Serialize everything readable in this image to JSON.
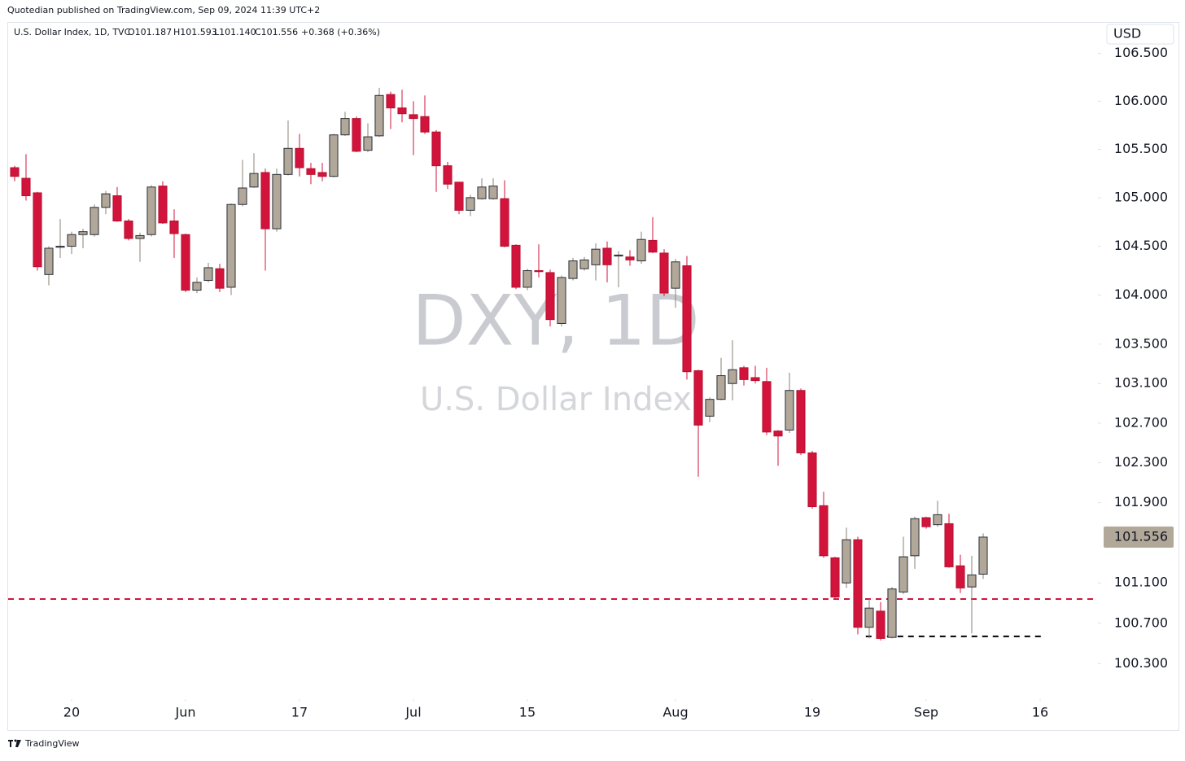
{
  "page": {
    "byline": "Quotedian published on TradingView.com, Sep 09, 2024 11:39 UTC+2",
    "brand": "TradingView"
  },
  "chart_data": {
    "type": "candlestick",
    "header": {
      "symbol": "U.S. Dollar Index, 1D, TVC",
      "open": "O101.187",
      "high": "H101.593",
      "low": "L101.140",
      "close": "C101.556",
      "change": "+0.368 (+0.36%)"
    },
    "watermark": {
      "title": "DXY, 1D",
      "subtitle": "U.S. Dollar Index"
    },
    "currency": "USD",
    "log": true,
    "grid": false,
    "up_color": "#b2a899",
    "up_border": "#2a2e39",
    "up_wick": "#8a8276",
    "down_color": "#d2143c",
    "down_border": "#b5102f",
    "down_wick": "#d2143c",
    "last_price_color": "#b2a899",
    "open": [
      105.31,
      105.2,
      105.05,
      104.21,
      104.49,
      104.5,
      104.62,
      104.62,
      104.9,
      105.02,
      104.76,
      104.58,
      104.62,
      105.12,
      104.76,
      104.62,
      104.05,
      104.15,
      104.27,
      104.08,
      104.93,
      105.11,
      105.26,
      104.68,
      105.24,
      105.51,
      105.3,
      105.26,
      105.22,
      105.65,
      105.82,
      105.49,
      105.64,
      106.07,
      105.93,
      105.86,
      105.84,
      105.68,
      105.33,
      105.16,
      104.87,
      104.99,
      104.99,
      104.99,
      104.51,
      104.08,
      104.25,
      104.23,
      103.71,
      104.17,
      104.27,
      104.31,
      104.48,
      104.4,
      104.39,
      104.35,
      104.56,
      104.43,
      104.07,
      104.3,
      103.23,
      102.77,
      102.94,
      103.1,
      103.26,
      103.16,
      103.12,
      102.62,
      102.63,
      103.03,
      102.4,
      101.87,
      101.35,
      101.1,
      101.53,
      100.66,
      100.82,
      100.56,
      101.01,
      101.37,
      101.75,
      101.68,
      101.69,
      101.27,
      101.06,
      101.187
    ],
    "high": [
      105.33,
      105.45,
      105.06,
      104.5,
      104.78,
      104.65,
      104.68,
      104.93,
      105.07,
      105.11,
      104.78,
      104.64,
      105.13,
      105.17,
      104.88,
      104.63,
      104.18,
      104.33,
      104.32,
      104.94,
      105.39,
      105.46,
      105.3,
      105.3,
      105.8,
      105.66,
      105.36,
      105.36,
      105.66,
      105.89,
      105.84,
      105.77,
      106.14,
      106.1,
      106.12,
      106.0,
      106.06,
      105.7,
      105.37,
      105.16,
      105.03,
      105.2,
      105.2,
      105.18,
      104.52,
      104.27,
      104.52,
      104.26,
      104.2,
      104.38,
      104.39,
      104.53,
      104.55,
      104.45,
      104.46,
      104.65,
      104.8,
      104.47,
      104.37,
      104.4,
      103.24,
      102.96,
      103.36,
      103.54,
      103.28,
      103.28,
      103.26,
      102.63,
      103.21,
      103.05,
      102.42,
      102.01,
      101.36,
      101.65,
      101.56,
      100.94,
      100.91,
      101.06,
      101.56,
      101.76,
      101.76,
      101.92,
      101.79,
      101.38,
      101.37,
      101.593
    ],
    "low": [
      105.17,
      104.97,
      104.25,
      104.1,
      104.38,
      104.42,
      104.48,
      104.6,
      104.83,
      104.75,
      104.56,
      104.34,
      104.6,
      104.73,
      104.38,
      104.03,
      104.02,
      104.13,
      104.03,
      104.0,
      104.91,
      105.1,
      104.25,
      104.65,
      105.23,
      105.22,
      105.14,
      105.17,
      105.21,
      105.64,
      105.47,
      105.47,
      105.63,
      105.71,
      105.78,
      105.44,
      105.66,
      105.06,
      105.09,
      104.83,
      104.81,
      104.98,
      104.98,
      104.49,
      104.06,
      104.05,
      104.18,
      103.68,
      103.68,
      104.15,
      104.25,
      104.15,
      104.13,
      104.08,
      104.3,
      104.32,
      104.43,
      103.99,
      103.87,
      103.14,
      102.16,
      102.71,
      102.93,
      102.93,
      103.08,
      103.1,
      102.58,
      102.27,
      102.6,
      102.38,
      101.84,
      101.35,
      100.95,
      101.05,
      100.59,
      100.55,
      100.53,
      100.55,
      100.99,
      101.24,
      101.64,
      101.66,
      101.25,
      101.0,
      100.6,
      101.14
    ],
    "close": [
      105.22,
      105.02,
      104.29,
      104.48,
      104.5,
      104.62,
      104.65,
      104.9,
      105.04,
      104.76,
      104.58,
      104.61,
      105.11,
      104.74,
      104.63,
      104.05,
      104.13,
      104.28,
      104.07,
      104.93,
      105.1,
      105.25,
      104.68,
      105.24,
      105.51,
      105.31,
      105.24,
      105.22,
      105.65,
      105.82,
      105.48,
      105.63,
      106.06,
      105.93,
      105.87,
      105.82,
      105.68,
      105.33,
      105.14,
      104.87,
      105.0,
      105.11,
      105.12,
      104.5,
      104.08,
      104.25,
      104.24,
      103.75,
      104.18,
      104.35,
      104.36,
      104.47,
      104.31,
      104.41,
      104.36,
      104.57,
      104.44,
      104.02,
      104.34,
      103.22,
      102.68,
      102.94,
      103.18,
      103.24,
      103.14,
      103.13,
      102.61,
      102.57,
      103.03,
      102.4,
      101.86,
      101.37,
      100.96,
      101.53,
      100.66,
      100.85,
      100.55,
      101.04,
      101.36,
      101.74,
      101.66,
      101.78,
      101.26,
      101.05,
      101.18,
      101.556
    ],
    "xlim": [
      -0.57,
      95
    ],
    "xticks": [
      {
        "value": 5,
        "label": "20"
      },
      {
        "value": 15,
        "label": "Jun"
      },
      {
        "value": 25,
        "label": "17"
      },
      {
        "value": 35,
        "label": "Jul"
      },
      {
        "value": 45,
        "label": "15"
      },
      {
        "value": 58,
        "label": "Aug"
      },
      {
        "value": 70,
        "label": "19"
      },
      {
        "value": 80,
        "label": "Sep"
      },
      {
        "value": 90,
        "label": "16"
      }
    ],
    "ylim": [
      99.96,
      106.82
    ],
    "yticks": [
      {
        "value": 106.5,
        "label": "106.500"
      },
      {
        "value": 106,
        "label": "106.000"
      },
      {
        "value": 105.5,
        "label": "105.500"
      },
      {
        "value": 105,
        "label": "105.000"
      },
      {
        "value": 104.5,
        "label": "104.500"
      },
      {
        "value": 104,
        "label": "104.000"
      },
      {
        "value": 103.5,
        "label": "103.500"
      },
      {
        "value": 103.1,
        "label": "103.100"
      },
      {
        "value": 102.7,
        "label": "102.700"
      },
      {
        "value": 102.3,
        "label": "102.300"
      },
      {
        "value": 101.9,
        "label": "101.900"
      },
      {
        "value": 101.1,
        "label": "101.100"
      },
      {
        "value": 100.7,
        "label": "100.700"
      },
      {
        "value": 100.3,
        "label": "100.300"
      }
    ],
    "hlines": [
      {
        "value": 100.94,
        "color": "#d2143c",
        "x_range": [
          -0.57,
          95
        ]
      },
      {
        "value": 100.57,
        "color": "#000000",
        "x_range": [
          74.7,
          90.1
        ]
      }
    ]
  }
}
